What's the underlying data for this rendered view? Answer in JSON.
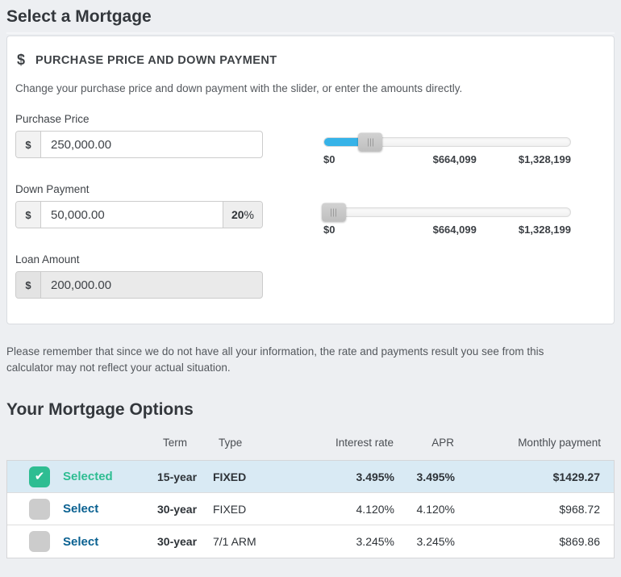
{
  "page": {
    "title": "Select a Mortgage"
  },
  "calculator": {
    "header": {
      "dollar_icon": "$",
      "title": "PURCHASE PRICE AND DOWN PAYMENT"
    },
    "description": "Change your purchase price and down payment with the slider, or enter the amounts directly.",
    "purchase_price": {
      "label": "Purchase Price",
      "currency_symbol": "$",
      "value": "250,000.00",
      "slider": {
        "fill_percent": 19,
        "handle_percent": 18.8,
        "min_label": "$0",
        "mid_label": "$664,099",
        "max_label": "$1,328,199"
      }
    },
    "down_payment": {
      "label": "Down Payment",
      "currency_symbol": "$",
      "value": "50,000.00",
      "percent_value": "20",
      "percent_sign": "%",
      "slider": {
        "fill_percent": 3.8,
        "handle_percent": 3.8,
        "min_label": "$0",
        "mid_label": "$664,099",
        "max_label": "$1,328,199"
      }
    },
    "loan_amount": {
      "label": "Loan Amount",
      "currency_symbol": "$",
      "value": "200,000.00"
    }
  },
  "disclaimer": "Please remember that since we do not have all your information, the rate and payments result you see from this calculator may not reflect your actual situation.",
  "options": {
    "title": "Your Mortgage Options",
    "columns": {
      "term": "Term",
      "type": "Type",
      "interest_rate": "Interest rate",
      "apr": "APR",
      "monthly_payment": "Monthly payment"
    },
    "check_icon": "✔",
    "rows": [
      {
        "state": "selected",
        "label": "Selected",
        "term": "15-year",
        "type": "FIXED",
        "interest_rate": "3.495%",
        "apr": "3.495%",
        "monthly_payment": "$1429.27"
      },
      {
        "state": "unselected",
        "label": "Select",
        "term": "30-year",
        "type": "FIXED",
        "interest_rate": "4.120%",
        "apr": "4.120%",
        "monthly_payment": "$968.72"
      },
      {
        "state": "unselected",
        "label": "Select",
        "term": "30-year",
        "type": "7/1 ARM",
        "interest_rate": "3.245%",
        "apr": "3.245%",
        "monthly_payment": "$869.86"
      }
    ]
  },
  "colors": {
    "accent_blue": "#36b3e8",
    "selected_green": "#2ebd92",
    "link_blue": "#0a6191",
    "selected_row_bg": "#d9eaf4",
    "page_bg": "#edeff2"
  }
}
